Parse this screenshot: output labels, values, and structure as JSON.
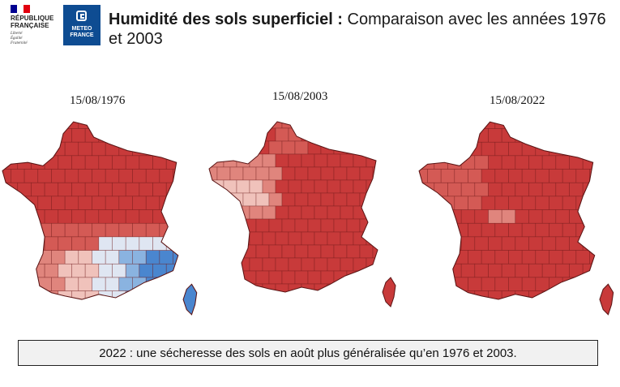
{
  "header": {
    "republique": {
      "line1": "RÉPUBLIQUE",
      "line2": "FRANÇAISE",
      "motto": [
        "Liberté",
        "Égalité",
        "Fraternité"
      ],
      "flag_colors": [
        "#000091",
        "#ffffff",
        "#e1000f"
      ]
    },
    "meteo_france": {
      "line1": "METEO",
      "line2": "FRANCE",
      "color": "#0e4c92"
    },
    "title_bold": "Humidité des sols superficiel :",
    "title_rest": " Comparaison avec les années 1976 et 2003"
  },
  "maps": [
    {
      "date": "15/08/1976",
      "palette": [
        "#c83a3a",
        "#d45a55",
        "#e0857d",
        "#f0c2bb",
        "#dfe6f2",
        "#8ab3e0",
        "#4a86cf"
      ]
    },
    {
      "date": "15/08/2003",
      "palette": [
        "#c83a3a",
        "#d45a55",
        "#e0857d",
        "#f0c2bb"
      ]
    },
    {
      "date": "15/08/2022",
      "palette": [
        "#c83a3a",
        "#d45a55",
        "#e0857d"
      ]
    }
  ],
  "caption": "2022 : une sécheresse des sols en août plus généralisée qu’en 1976 et 2003."
}
